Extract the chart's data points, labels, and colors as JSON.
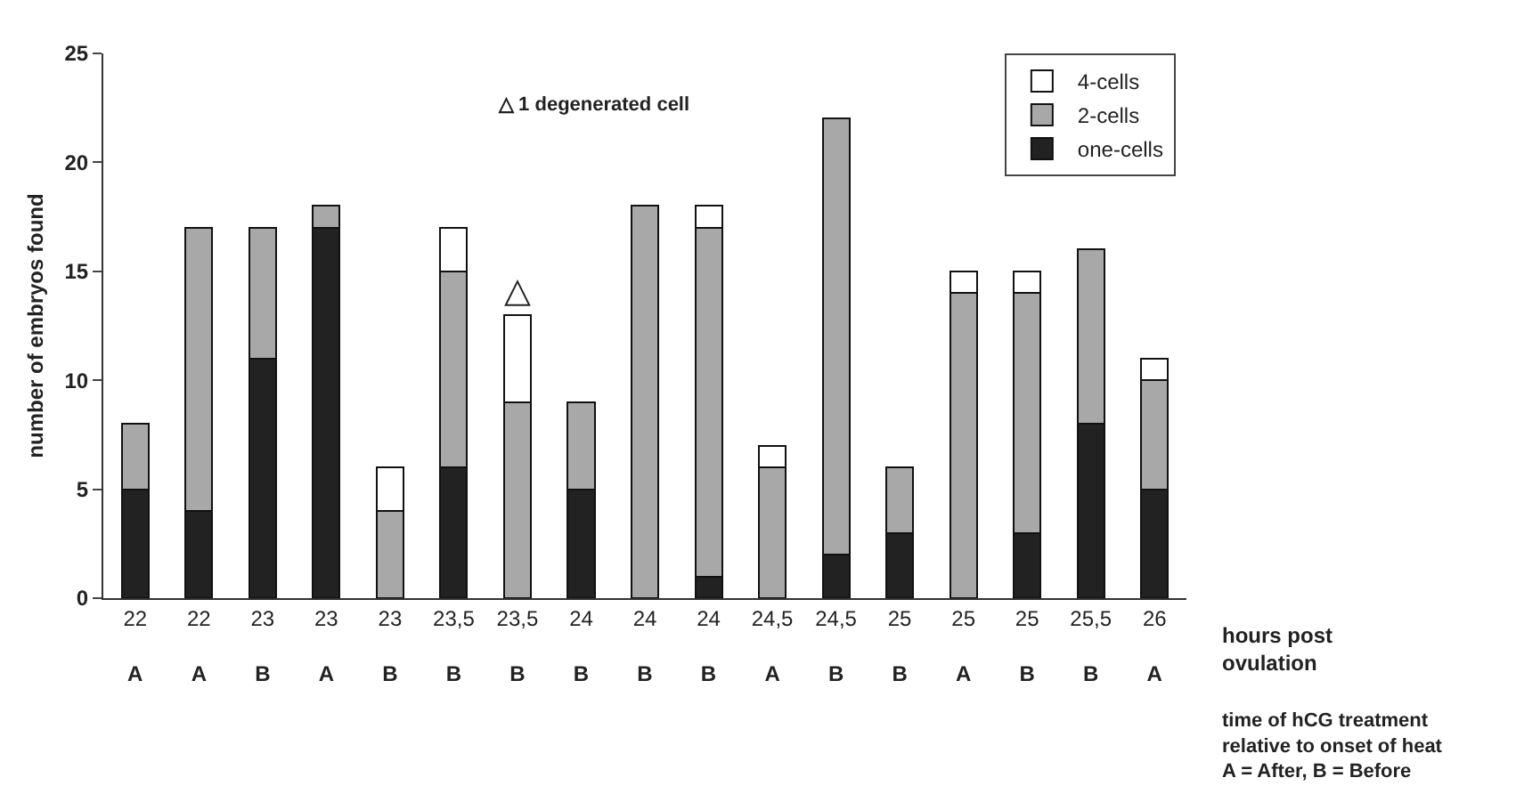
{
  "chart_data": {
    "type": "bar",
    "stacked": true,
    "ylabel": "number of embryos found",
    "xlabel": "hours post\novulation",
    "categories": [
      "22\nA",
      "22\nA",
      "23\nB",
      "23\nA",
      "23\nB",
      "23,5\nB",
      "23,5\nB",
      "24\nB",
      "24\nB",
      "24\nB",
      "24,5\nA",
      "24,5\nB",
      "25\nB",
      "25\nA",
      "25\nB",
      "25,5\nB",
      "26\nA"
    ],
    "series": [
      {
        "name": "one-cells",
        "color": "#222222",
        "values": [
          5,
          4,
          11,
          17,
          0,
          6,
          0,
          5,
          0,
          1,
          0,
          2,
          3,
          0,
          3,
          8,
          5
        ]
      },
      {
        "name": "2-cells",
        "color": "#a8a8a8",
        "values": [
          3,
          13,
          6,
          1,
          4,
          9,
          9,
          4,
          18,
          16,
          6,
          20,
          3,
          14,
          11,
          8,
          5
        ]
      },
      {
        "name": "4-cells",
        "color": "#ffffff",
        "values": [
          0,
          0,
          0,
          0,
          2,
          2,
          4,
          0,
          0,
          1,
          1,
          0,
          0,
          1,
          1,
          0,
          1
        ],
        "value_labels": [
          null,
          null,
          null,
          null,
          null,
          null,
          "△",
          null,
          null,
          null,
          null,
          null,
          null,
          null,
          null,
          null,
          null
        ]
      }
    ],
    "ylim": [
      0,
      25
    ],
    "yticks": [
      0,
      5,
      10,
      15,
      20,
      25
    ],
    "grid": false,
    "legend": "top right",
    "annotations": [
      "△ 1 degenerated cell",
      "time of hCG treatment\nrelative to onset of heat\nA = After, B = Before"
    ]
  }
}
